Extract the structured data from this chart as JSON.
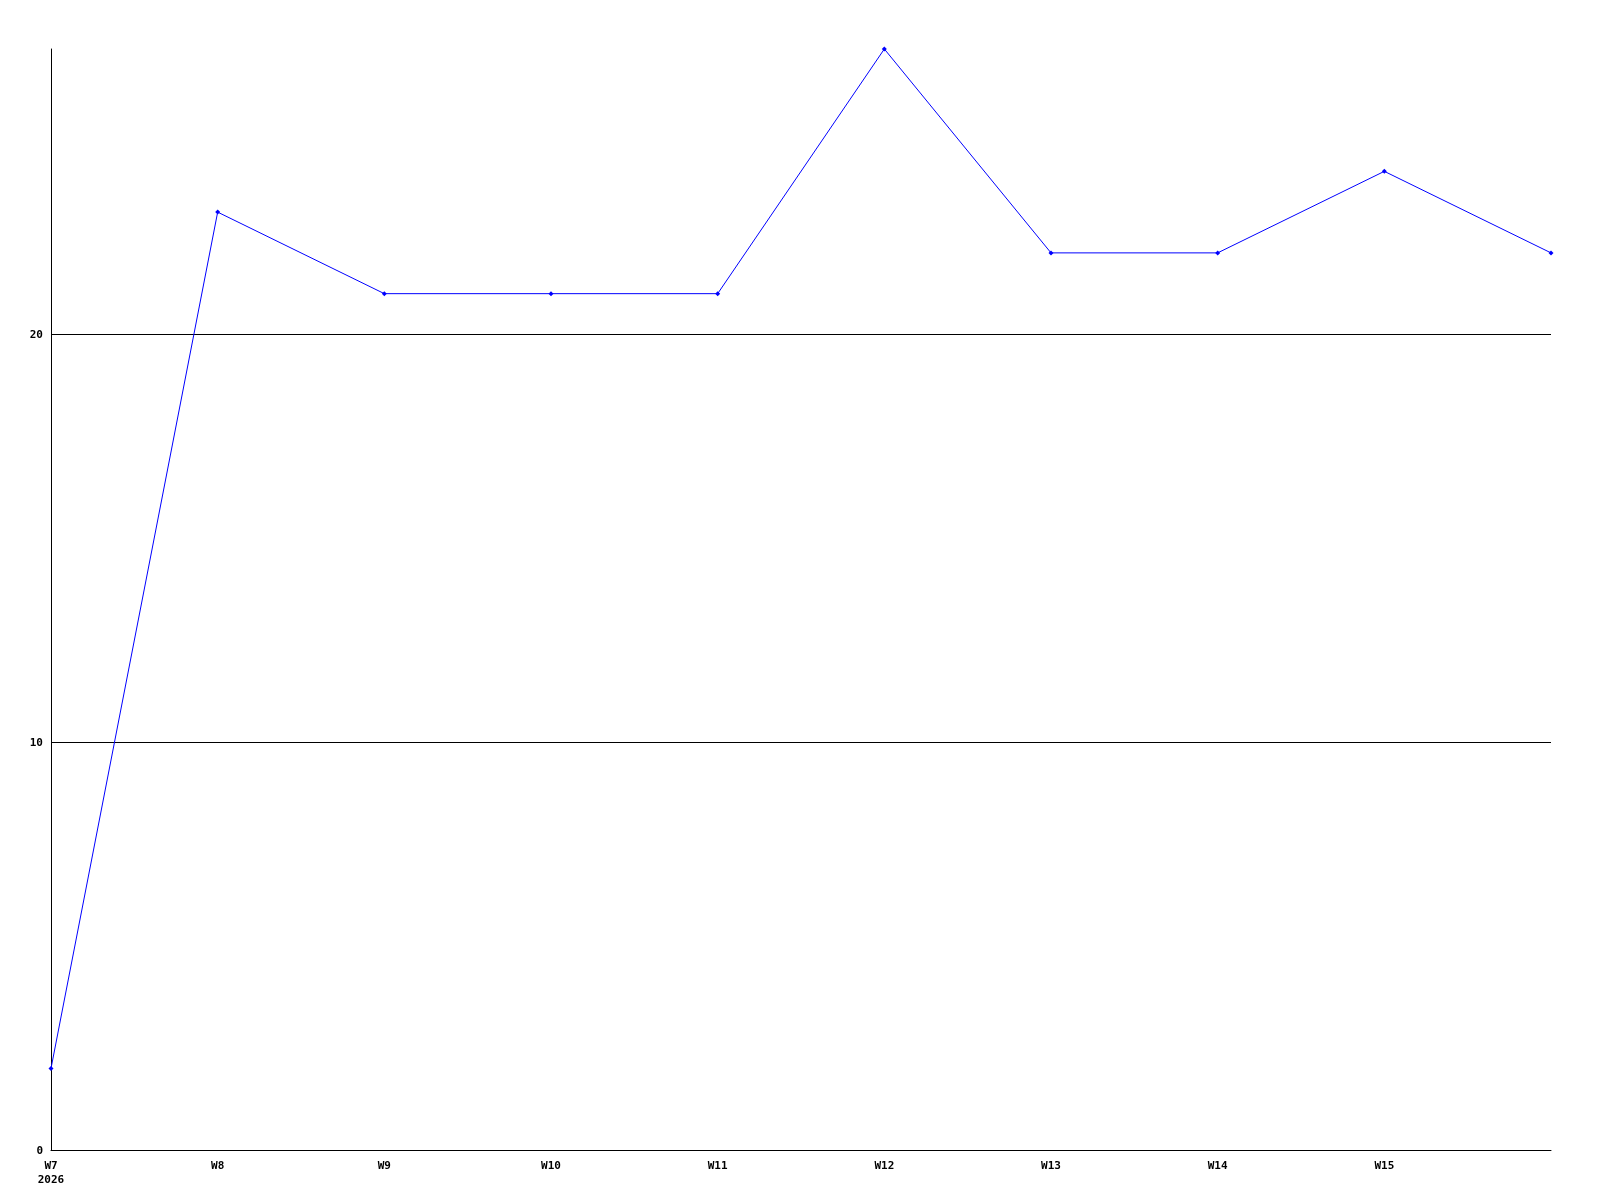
{
  "chart_data": {
    "type": "line",
    "categories": [
      "W7\n2026",
      "W8",
      "W9",
      "W10",
      "W11",
      "W12",
      "W13",
      "W14",
      "W15",
      null
    ],
    "series": [
      {
        "color": "#0000ff",
        "values": [
          2,
          23,
          21,
          21,
          21,
          27,
          22,
          22,
          24,
          22
        ]
      }
    ],
    "ylim": [
      0,
      27
    ],
    "yticks": [
      0,
      10,
      20
    ],
    "grid": "y",
    "marker": "diamond",
    "line_style": "solid"
  }
}
